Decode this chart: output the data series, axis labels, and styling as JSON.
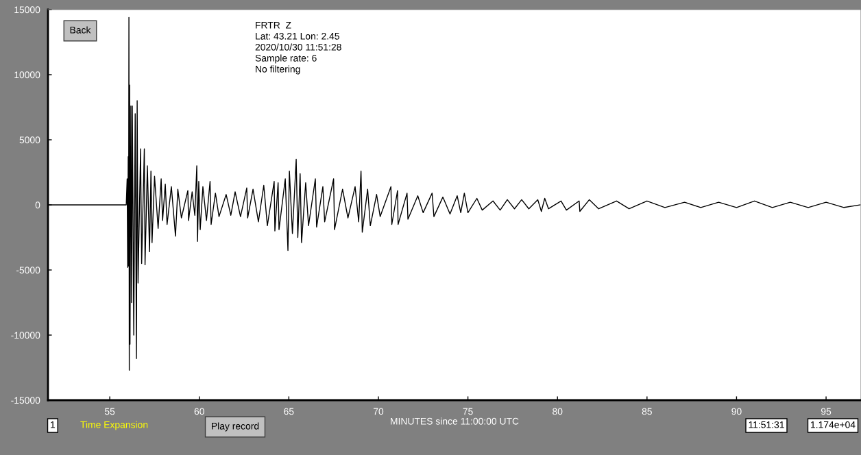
{
  "chart_data": {
    "type": "line",
    "xlabel": "MINUTES since 11:00:00 UTC",
    "xlim": [
      51.55,
      96.95
    ],
    "xticks": [
      55,
      60,
      65,
      70,
      75,
      80,
      85,
      90,
      95
    ],
    "ylim": [
      -15000,
      15000
    ],
    "yticks": [
      -15000,
      -10000,
      -5000,
      0,
      5000,
      10000,
      15000
    ],
    "grid": false,
    "legend": false,
    "marker": "none",
    "line_style": "solid",
    "annotations": [
      "FRTR  Z",
      "Lat: 43.21 Lon: 2.45",
      "2020/10/30 11:51:28",
      "Sample rate: 6",
      "No filtering",
      "Back",
      "1",
      "Time Expansion",
      "Play record",
      "11:51:31",
      "1.174e+04"
    ],
    "series": [
      {
        "color": "#000000",
        "x": [
          51.55,
          55.92,
          55.97,
          56.0,
          56.03,
          56.05,
          56.07,
          56.09,
          56.11,
          56.13,
          56.18,
          56.22,
          56.26,
          56.34,
          56.42,
          56.49,
          56.53,
          56.58,
          56.72,
          56.78,
          56.93,
          56.97,
          57.1,
          57.22,
          57.3,
          57.36,
          57.5,
          57.7,
          57.87,
          57.95,
          58.1,
          58.2,
          58.44,
          58.67,
          58.8,
          59.0,
          59.36,
          59.4,
          59.6,
          59.75,
          59.86,
          59.9,
          59.97,
          60.05,
          60.2,
          60.4,
          60.6,
          60.66,
          60.9,
          61.1,
          61.5,
          61.76,
          62.0,
          62.3,
          62.65,
          62.7,
          63.0,
          63.3,
          63.6,
          63.8,
          64.18,
          64.22,
          64.4,
          64.45,
          64.8,
          64.95,
          65.03,
          65.2,
          65.41,
          65.5,
          65.63,
          65.71,
          65.94,
          66.1,
          66.48,
          66.55,
          66.9,
          67.0,
          67.5,
          67.55,
          68.0,
          68.3,
          68.7,
          68.9,
          69.03,
          69.1,
          69.4,
          69.55,
          69.9,
          70.1,
          70.7,
          70.75,
          71.07,
          71.1,
          71.6,
          71.65,
          72.2,
          72.5,
          73.0,
          73.1,
          73.6,
          74.0,
          74.4,
          74.6,
          74.8,
          75.0,
          75.5,
          75.8,
          76.4,
          76.8,
          77.2,
          77.6,
          78.0,
          78.4,
          78.9,
          79.1,
          79.29,
          79.5,
          80.2,
          80.5,
          81.21,
          81.25,
          81.78,
          82.3,
          83.3,
          84.0,
          85.0,
          86.0,
          87.1,
          88.0,
          89.0,
          90.0,
          91.0,
          92.0,
          93.0,
          94.0,
          95.0,
          96.0,
          96.9
        ],
        "values": [
          0,
          0,
          2000,
          -4800,
          3700,
          -4700,
          14400,
          -12700,
          9200,
          -10700,
          7600,
          -7500,
          7600,
          -10000,
          7000,
          -11800,
          8000,
          -6000,
          4300,
          -4500,
          4300,
          -4600,
          3000,
          -3600,
          2600,
          -2900,
          2200,
          -1800,
          2000,
          -1200,
          1600,
          -1500,
          1400,
          -2400,
          1200,
          -1000,
          1100,
          -1200,
          1000,
          -800,
          3000,
          -2800,
          1800,
          -1900,
          1400,
          -1200,
          1800,
          -1500,
          900,
          -900,
          800,
          -800,
          1000,
          -900,
          1300,
          -1000,
          1200,
          -1300,
          1500,
          -1600,
          1800,
          -2000,
          1700,
          -1900,
          2000,
          -3500,
          2600,
          -2200,
          3500,
          -2500,
          2400,
          -2900,
          1700,
          -1600,
          2000,
          -1700,
          1400,
          -1300,
          2000,
          -1900,
          1200,
          -1000,
          1400,
          -1300,
          2600,
          -2100,
          1200,
          -1600,
          800,
          -900,
          1400,
          -1500,
          1100,
          -1500,
          900,
          -1100,
          700,
          -600,
          900,
          -900,
          600,
          -700,
          700,
          -600,
          900,
          -600,
          500,
          -400,
          300,
          -400,
          400,
          -300,
          400,
          -300,
          400,
          -500,
          500,
          -300,
          300,
          -400,
          300,
          -500,
          400,
          -300,
          300,
          -300,
          300,
          -200,
          200,
          -200,
          200,
          -200,
          300,
          -200,
          200,
          -200,
          200,
          -200,
          0
        ]
      }
    ]
  }
}
